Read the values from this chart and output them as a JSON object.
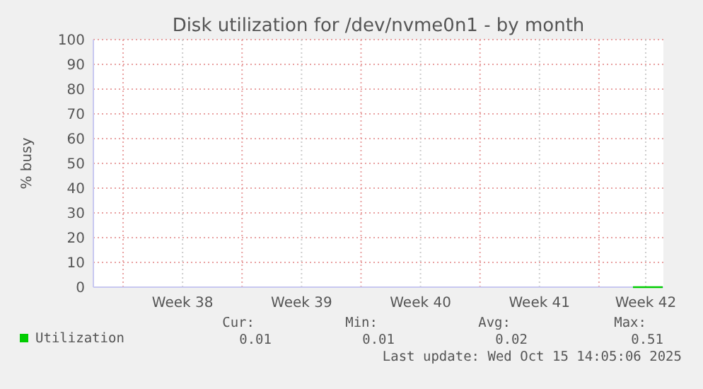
{
  "chart_data": {
    "type": "line",
    "title": "Disk utilization for /dev/nvme0n1 - by month",
    "ylabel": "% busy",
    "x": [
      "2025-10-15T00:00",
      "2025-10-16T18:00"
    ],
    "series": [
      {
        "name": "Utilization",
        "color": "#00cc00",
        "values": [
          0,
          0
        ]
      }
    ],
    "xlim": [
      "2025-09-13T06:00",
      "2025-10-16T19:00"
    ],
    "xticks": [
      {
        "value": "2025-09-15",
        "label": null
      },
      {
        "value": "2025-09-18T12:00",
        "label": "Week 38"
      },
      {
        "value": "2025-09-22",
        "label": null
      },
      {
        "value": "2025-09-25T12:00",
        "label": "Week 39"
      },
      {
        "value": "2025-09-29",
        "label": null
      },
      {
        "value": "2025-10-02T12:00",
        "label": "Week 40"
      },
      {
        "value": "2025-10-06",
        "label": null
      },
      {
        "value": "2025-10-09T12:00",
        "label": "Week 41"
      },
      {
        "value": "2025-10-13",
        "label": null
      },
      {
        "value": "2025-10-15T18:00",
        "label": "Week 42"
      }
    ],
    "ylim": [
      0,
      100
    ],
    "yticks": [
      0,
      10,
      20,
      30,
      40,
      50,
      60,
      70,
      80,
      90,
      100
    ],
    "grid": true,
    "legend": "bottom",
    "marker": "none",
    "line_style": "solid",
    "annotations": [
      "Cur:",
      "Min:",
      "Avg:",
      "Max:",
      "0.01",
      "0.01",
      "0.02",
      "0.51",
      "Last update: Wed Oct 15 14:05:06 2025"
    ]
  }
}
